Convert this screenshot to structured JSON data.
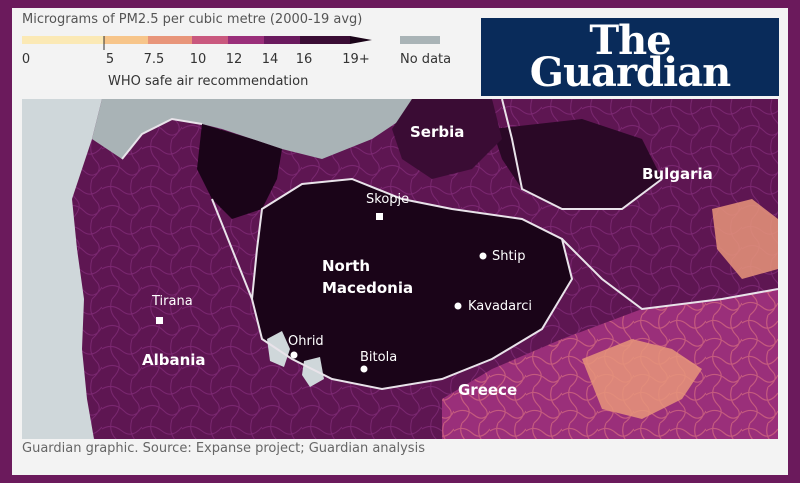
{
  "legend": {
    "title": "Micrograms of PM2.5 per cubic metre (2000-19 avg)",
    "ticks": [
      "0",
      "5",
      "7.5",
      "10",
      "12",
      "14",
      "16",
      "19+"
    ],
    "colors": [
      "#fbe9b5",
      "#f7c58a",
      "#e8957a",
      "#c9587e",
      "#9a2f7a",
      "#6a1a5e",
      "#3a0c34",
      "#1a0418"
    ],
    "who_note": "WHO safe air recommendation",
    "no_data_label": "No data",
    "no_data_color": "#a9b3b6"
  },
  "logo": {
    "line1": "The",
    "line2": "Guardian",
    "background": "#092b5a"
  },
  "map": {
    "countries": [
      "Serbia",
      "Bulgaria",
      "North",
      "Macedonia",
      "Albania",
      "Greece"
    ],
    "cities": [
      "Skopje",
      "Shtip",
      "Kavadarci",
      "Tirana",
      "Ohrid",
      "Bitola"
    ]
  },
  "source": "Guardian graphic. Source: Expanse project; Guardian analysis",
  "page_border_color": "#6b1a5c"
}
